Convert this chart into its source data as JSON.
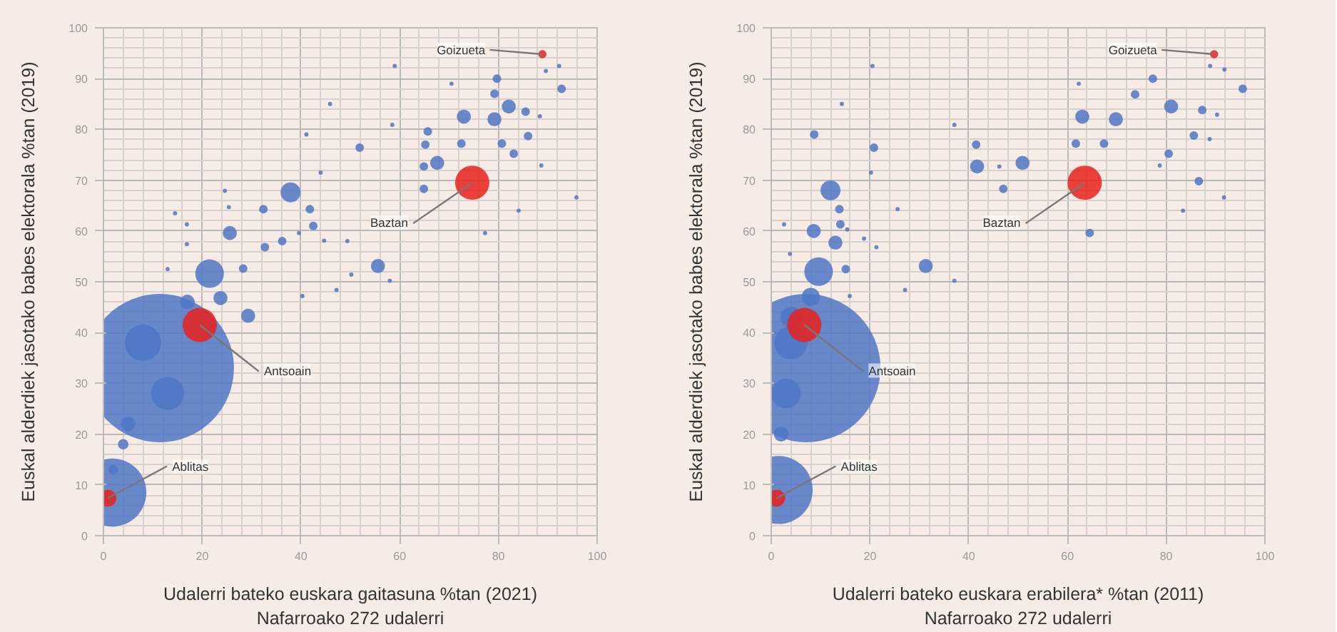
{
  "chart_data": [
    {
      "type": "bubble",
      "xlabel": "Udalerri bateko euskara gaitasuna %tan (2021)\nNafarroako 272 udalerri",
      "ylabel": "Euskal alderdiek jasotako babes elektorala %tan (2019)",
      "xlim": [
        0,
        100
      ],
      "ylim": [
        0,
        100
      ],
      "xticks": [
        0,
        20,
        40,
        60,
        80,
        100
      ],
      "yticks": [
        0,
        10,
        20,
        30,
        40,
        50,
        60,
        70,
        80,
        90,
        100
      ],
      "grid": true,
      "marker": "circle",
      "series": [
        {
          "color": "#4f77c4",
          "x": [
            11.4,
            1.8,
            8,
            13,
            5,
            4,
            2,
            17,
            23.7,
            29.3,
            21.5,
            28.3,
            37.9,
            25.6,
            55.6,
            79.7,
            92.3,
            89.6,
            92.8,
            79.2,
            70.5,
            59,
            73,
            79.2,
            82.1,
            85.5,
            88.4,
            72.5,
            80.7,
            83.1,
            86,
            88.7,
            95.8,
            84.1,
            77.3,
            65.7,
            65.2,
            64.9,
            67.6,
            64.9,
            58.5,
            51.9,
            45.9,
            41.1,
            41.8,
            42.5,
            39.6,
            44,
            44.7,
            49.4,
            36.2,
            32.7,
            32.4,
            24.6,
            25.4,
            16.9,
            16.9,
            58,
            50.2,
            40.3,
            47.2,
            13,
            14.5
          ],
          "values": [
            33,
            8.5,
            38,
            28,
            22,
            18,
            13,
            46,
            46.8,
            43.3,
            51.6,
            52.6,
            67.6,
            59.6,
            53.1,
            90,
            92.5,
            91.5,
            88,
            87,
            89,
            92.5,
            82.5,
            82,
            84.5,
            83.5,
            82.6,
            77.2,
            77.2,
            75.2,
            78.7,
            72.9,
            66.6,
            64,
            59.6,
            79.6,
            77,
            72.7,
            73.4,
            68.3,
            80.9,
            76.4,
            85,
            79,
            64.3,
            61,
            59.6,
            71.5,
            58.1,
            58,
            58,
            56.8,
            64.3,
            67.9,
            64.7,
            61.3,
            57.4,
            50.2,
            51.4,
            47.2,
            48.4,
            52.5,
            63.5
          ],
          "sizes": [
            1,
            0.21,
            0.06,
            0.05,
            0.01,
            0.005,
            0.004,
            0.01,
            0.009,
            0.009,
            0.037,
            0.0033,
            0.018,
            0.009,
            0.009,
            0.0033,
            0.0008,
            0.0008,
            0.0033,
            0.0033,
            0.0008,
            0.0008,
            0.009,
            0.009,
            0.009,
            0.0033,
            0.0008,
            0.0033,
            0.0033,
            0.0033,
            0.0033,
            0.0008,
            0.0008,
            0.0008,
            0.0008,
            0.0033,
            0.0033,
            0.0033,
            0.009,
            0.0033,
            0.0008,
            0.0033,
            0.0008,
            0.0008,
            0.0033,
            0.0033,
            0.0008,
            0.0008,
            0.0008,
            0.0008,
            0.0033,
            0.0033,
            0.0033,
            0.0008,
            0.0008,
            0.0008,
            0.0008,
            0.0008,
            0.0008,
            0.0008,
            0.0008,
            0.0008,
            0.0008
          ]
        },
        {
          "color": "#e8211c",
          "x": [
            19.5,
            0.9,
            74.7,
            88.9
          ],
          "values": [
            41.5,
            7.4,
            69.5,
            94.8
          ],
          "sizes": [
            0.053,
            0.013,
            0.053,
            0.003
          ]
        }
      ],
      "annotations": [
        {
          "text": "Antsoain",
          "x": 19.5,
          "y": 41.5
        },
        {
          "text": "Ablitas",
          "x": 0.9,
          "y": 7.4
        },
        {
          "text": "Baztan",
          "x": 74.7,
          "y": 69.5
        },
        {
          "text": "Goizueta",
          "x": 88.9,
          "y": 94.8
        }
      ]
    },
    {
      "type": "bubble",
      "xlabel": "Udalerri bateko euskara erabilera* %tan (2011)\nNafarroako 272 udalerri",
      "ylabel": "Euskal alderdiek jasotako babes elektorala %tan (2019)",
      "xlim": [
        0,
        100
      ],
      "ylim": [
        0,
        100
      ],
      "xticks": [
        0,
        20,
        40,
        60,
        80,
        100
      ],
      "yticks": [
        0,
        10,
        20,
        30,
        40,
        50,
        60,
        70,
        80,
        90,
        100
      ],
      "grid": true,
      "marker": "circle",
      "series": [
        {
          "color": "#4f77c4",
          "x": [
            7.1,
            1.5,
            4,
            3,
            2,
            4,
            8,
            88.9,
            91.8,
            95.5,
            77.3,
            73.7,
            62.3,
            20.5,
            14.3,
            8.7,
            37.1,
            20.8,
            20.2,
            41.5,
            41.7,
            46.2,
            50.9,
            47,
            63,
            69.8,
            81,
            87.3,
            90.3,
            61.7,
            67.4,
            80.5,
            85.6,
            88.8,
            78.7,
            91.7,
            83.4,
            64.5,
            86.6,
            12,
            13.8,
            8.6,
            14,
            13,
            15.4,
            18.8,
            21.3,
            25.6,
            31.3,
            37.1,
            27.1,
            9.6,
            15.1,
            2.6,
            3.8,
            15.9
          ],
          "values": [
            33,
            9,
            38,
            28,
            20,
            43,
            47,
            92.5,
            91.8,
            88,
            90,
            86.9,
            89,
            92.5,
            85,
            79,
            80.9,
            76.4,
            71.5,
            77,
            72.7,
            72.7,
            73.4,
            68.3,
            82.5,
            82,
            84.5,
            83.8,
            82.9,
            77.2,
            77.2,
            75.2,
            78.8,
            78.1,
            72.9,
            66.6,
            64,
            59.6,
            69.8,
            68,
            64.3,
            60,
            61.3,
            57.7,
            60.3,
            58.5,
            56.8,
            64.3,
            53.1,
            50.2,
            48.4,
            52,
            52.5,
            61.3,
            55.5,
            47.2
          ],
          "sizes": [
            1,
            0.21,
            0.05,
            0.04,
            0.01,
            0.02,
            0.015,
            0.0008,
            0.0008,
            0.0033,
            0.0033,
            0.0033,
            0.0008,
            0.0008,
            0.0008,
            0.0033,
            0.0008,
            0.0033,
            0.0008,
            0.0033,
            0.009,
            0.0008,
            0.009,
            0.0033,
            0.009,
            0.009,
            0.009,
            0.0033,
            0.0008,
            0.0033,
            0.0033,
            0.0033,
            0.0033,
            0.0008,
            0.0008,
            0.0008,
            0.0008,
            0.0033,
            0.0033,
            0.018,
            0.0033,
            0.009,
            0.0033,
            0.009,
            0.0008,
            0.0008,
            0.0008,
            0.0008,
            0.009,
            0.0008,
            0.0008,
            0.037,
            0.0033,
            0.0008,
            0.0008,
            0.0008
          ]
        },
        {
          "color": "#e8211c",
          "x": [
            6.7,
            1.1,
            63.5,
            89.7
          ],
          "values": [
            41.5,
            7.4,
            69.5,
            94.8
          ],
          "sizes": [
            0.053,
            0.013,
            0.053,
            0.003
          ]
        }
      ],
      "annotations": [
        {
          "text": "Antsoain",
          "x": 6.7,
          "y": 41.5
        },
        {
          "text": "Ablitas",
          "x": 1.1,
          "y": 7.4
        },
        {
          "text": "Baztan",
          "x": 63.5,
          "y": 69.5
        },
        {
          "text": "Goizueta",
          "x": 89.7,
          "y": 94.8
        }
      ]
    }
  ]
}
